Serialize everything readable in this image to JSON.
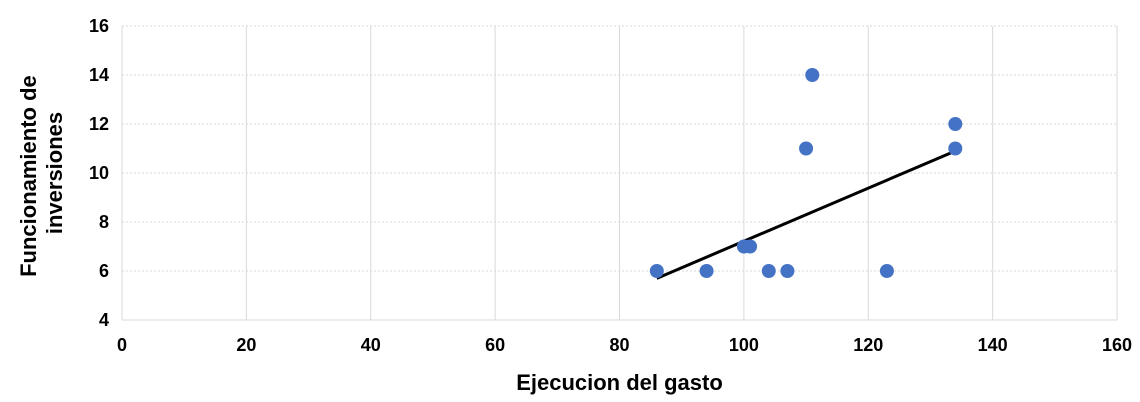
{
  "chart_data": {
    "type": "scatter",
    "xlabel": "Ejecucion del gasto",
    "ylabel_lines": [
      "Funcionamiento de",
      "inversiones"
    ],
    "xlim": [
      0,
      160
    ],
    "ylim": [
      4,
      16
    ],
    "x_ticks": [
      0,
      20,
      40,
      60,
      80,
      100,
      120,
      140,
      160
    ],
    "y_ticks": [
      4,
      6,
      8,
      10,
      12,
      14,
      16
    ],
    "grid": true,
    "legend": "none",
    "points": [
      {
        "x": 86,
        "y": 6
      },
      {
        "x": 94,
        "y": 6
      },
      {
        "x": 100,
        "y": 7
      },
      {
        "x": 101,
        "y": 7
      },
      {
        "x": 104,
        "y": 6
      },
      {
        "x": 107,
        "y": 6
      },
      {
        "x": 110,
        "y": 11
      },
      {
        "x": 111,
        "y": 14
      },
      {
        "x": 123,
        "y": 6
      },
      {
        "x": 134,
        "y": 12
      },
      {
        "x": 134,
        "y": 11
      }
    ],
    "trendline": {
      "x": [
        86,
        134
      ],
      "y": [
        5.7,
        10.9
      ]
    },
    "colors": {
      "points": "#4472C4",
      "trendline": "#000000",
      "grid": "#D9D9D9"
    }
  }
}
